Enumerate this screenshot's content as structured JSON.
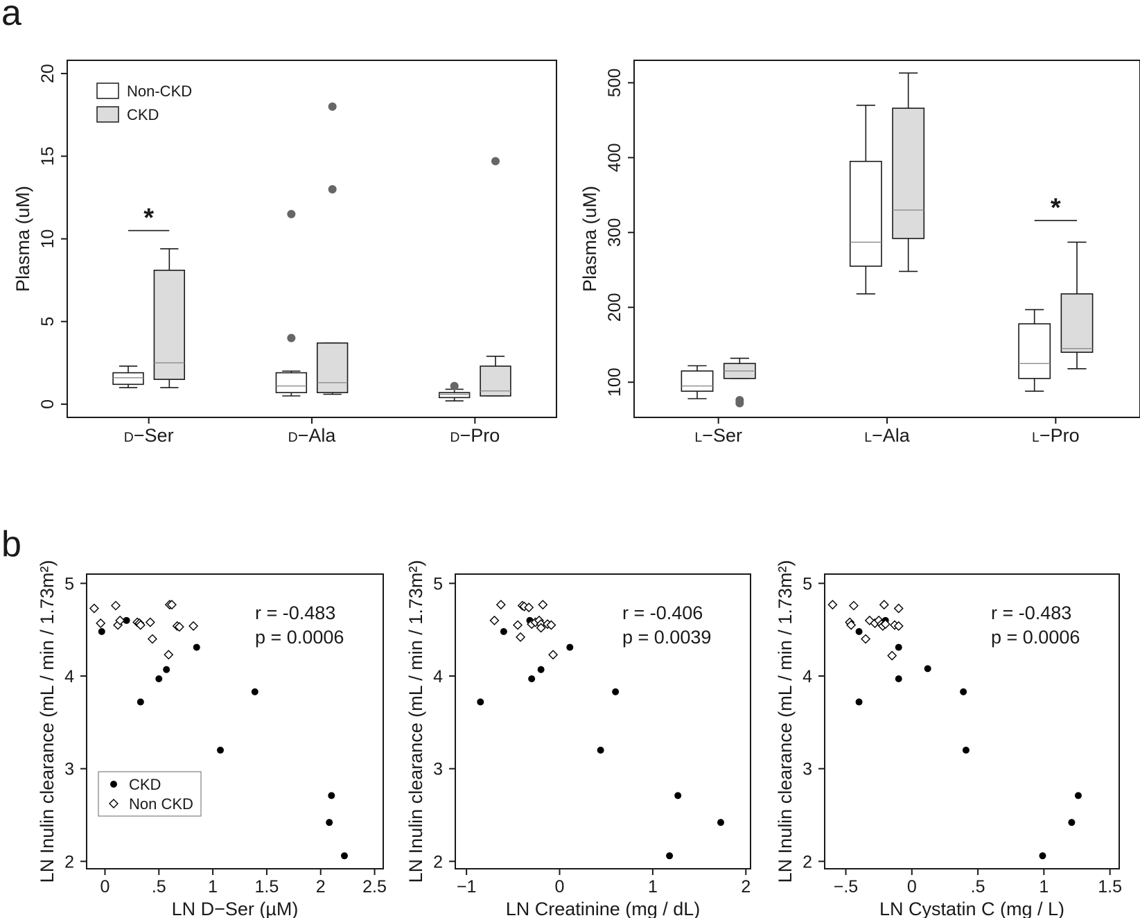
{
  "panels": {
    "a": "a",
    "b": "b"
  },
  "colors": {
    "axis": "#1a1a1a",
    "nonckd_fill": "#ffffff",
    "ckd_fill": "#dcdcdc",
    "median": "#8c8c8c",
    "outlier": "#666666",
    "point": "#000000"
  },
  "chart_data": [
    {
      "id": "d",
      "type": "box",
      "ylabel": "Plasma (uM)",
      "ylim": [
        -0.8,
        20.8
      ],
      "yticks": [
        0,
        5,
        10,
        15,
        20
      ],
      "groups": [
        {
          "prefix": "D",
          "name": "−Ser"
        },
        {
          "prefix": "D",
          "name": "−Ala"
        },
        {
          "prefix": "D",
          "name": "−Pro"
        }
      ],
      "legend": {
        "position": "top-left",
        "items": [
          {
            "label": "Non-CKD",
            "fill": "nonckd"
          },
          {
            "label": "CKD",
            "fill": "ckd"
          }
        ]
      },
      "boxes": [
        {
          "group": 0,
          "series": "nonckd",
          "whisker_low": 1.0,
          "q1": 1.2,
          "median": 1.6,
          "q3": 1.9,
          "whisker_high": 2.3,
          "outliers": []
        },
        {
          "group": 0,
          "series": "ckd",
          "whisker_low": 1.0,
          "q1": 1.5,
          "median": 2.5,
          "q3": 8.1,
          "whisker_high": 9.4,
          "outliers": []
        },
        {
          "group": 1,
          "series": "nonckd",
          "whisker_low": 0.5,
          "q1": 0.7,
          "median": 1.1,
          "q3": 1.9,
          "whisker_high": 2.0,
          "outliers": [
            4.0,
            11.5
          ]
        },
        {
          "group": 1,
          "series": "ckd",
          "whisker_low": 0.6,
          "q1": 0.7,
          "median": 1.3,
          "q3": 3.7,
          "whisker_high": 3.7,
          "outliers": [
            13.0,
            18.0
          ]
        },
        {
          "group": 2,
          "series": "nonckd",
          "whisker_low": 0.2,
          "q1": 0.4,
          "median": 0.6,
          "q3": 0.7,
          "whisker_high": 0.9,
          "outliers": [
            1.1
          ]
        },
        {
          "group": 2,
          "series": "ckd",
          "whisker_low": 0.5,
          "q1": 0.5,
          "median": 0.8,
          "q3": 2.3,
          "whisker_high": 2.9,
          "outliers": [
            14.7
          ]
        }
      ],
      "significance": [
        {
          "group": 0,
          "y": 10.5,
          "label": "*"
        }
      ]
    },
    {
      "id": "l",
      "type": "box",
      "ylabel": "Plasma (uM)",
      "ylim": [
        53,
        530
      ],
      "yticks": [
        100,
        200,
        300,
        400,
        500
      ],
      "groups": [
        {
          "prefix": "L",
          "name": "−Ser"
        },
        {
          "prefix": "L",
          "name": "−Ala"
        },
        {
          "prefix": "L",
          "name": "−Pro"
        }
      ],
      "boxes": [
        {
          "group": 0,
          "series": "nonckd",
          "whisker_low": 78,
          "q1": 88,
          "median": 95,
          "q3": 115,
          "whisker_high": 122,
          "outliers": []
        },
        {
          "group": 0,
          "series": "ckd",
          "whisker_low": 105,
          "q1": 105,
          "median": 115,
          "q3": 125,
          "whisker_high": 132,
          "outliers": [
            72,
            76
          ]
        },
        {
          "group": 1,
          "series": "nonckd",
          "whisker_low": 218,
          "q1": 255,
          "median": 287,
          "q3": 395,
          "whisker_high": 470,
          "outliers": []
        },
        {
          "group": 1,
          "series": "ckd",
          "whisker_low": 248,
          "q1": 292,
          "median": 330,
          "q3": 466,
          "whisker_high": 513,
          "outliers": []
        },
        {
          "group": 2,
          "series": "nonckd",
          "whisker_low": 88,
          "q1": 105,
          "median": 125,
          "q3": 178,
          "whisker_high": 197,
          "outliers": []
        },
        {
          "group": 2,
          "series": "ckd",
          "whisker_low": 118,
          "q1": 140,
          "median": 145,
          "q3": 218,
          "whisker_high": 287,
          "outliers": []
        }
      ],
      "significance": [
        {
          "group": 2,
          "y": 316,
          "label": "*"
        }
      ]
    },
    {
      "id": "dser",
      "type": "scatter",
      "xlabel": "LN D−Ser (µM)",
      "ylabel": "LN Inulin clearance (mL / min / 1.73m²)",
      "xlim": [
        -0.17,
        2.58
      ],
      "ylim": [
        1.92,
        5.1
      ],
      "xticks": [
        0,
        0.5,
        1,
        1.5,
        2,
        2.5
      ],
      "xtick_labels": [
        "0",
        ".5",
        "1",
        "1.5",
        "2",
        "2.5"
      ],
      "yticks": [
        2,
        3,
        4,
        5
      ],
      "stats": {
        "r": "r = -0.483",
        "p": "p = 0.0006"
      },
      "legend": {
        "position": "bottom-left",
        "items": [
          {
            "label": "CKD",
            "marker": "dot"
          },
          {
            "label": "Non CKD",
            "marker": "diamond"
          }
        ]
      },
      "series": [
        {
          "name": "CKD",
          "marker": "dot",
          "points": [
            [
              -0.03,
              4.48
            ],
            [
              0.2,
              4.6
            ],
            [
              0.33,
              3.72
            ],
            [
              0.5,
              3.97
            ],
            [
              0.57,
              4.07
            ],
            [
              0.85,
              4.31
            ],
            [
              1.39,
              3.83
            ],
            [
              1.07,
              3.2
            ],
            [
              2.1,
              2.71
            ],
            [
              2.08,
              2.42
            ],
            [
              2.22,
              2.06
            ]
          ]
        },
        {
          "name": "Non CKD",
          "marker": "diamond",
          "points": [
            [
              -0.1,
              4.73
            ],
            [
              -0.04,
              4.57
            ],
            [
              0.1,
              4.76
            ],
            [
              0.12,
              4.55
            ],
            [
              0.14,
              4.6
            ],
            [
              0.3,
              4.58
            ],
            [
              0.32,
              4.57
            ],
            [
              0.33,
              4.55
            ],
            [
              0.42,
              4.58
            ],
            [
              0.44,
              4.4
            ],
            [
              0.6,
              4.77
            ],
            [
              0.62,
              4.77
            ],
            [
              0.67,
              4.54
            ],
            [
              0.69,
              4.53
            ],
            [
              0.82,
              4.54
            ],
            [
              0.59,
              4.23
            ]
          ]
        }
      ]
    },
    {
      "id": "creat",
      "type": "scatter",
      "xlabel": "LN Creatinine (mg / dL)",
      "ylabel": "LN Inulin clearance (mL / min / 1.73m²)",
      "xlim": [
        -1.12,
        2.05
      ],
      "ylim": [
        1.92,
        5.1
      ],
      "xticks": [
        -1,
        0,
        1,
        2
      ],
      "xtick_labels": [
        "−1",
        "0",
        "1",
        "2"
      ],
      "yticks": [
        2,
        3,
        4,
        5
      ],
      "stats": {
        "r": "r = -0.406",
        "p": "p = 0.0039"
      },
      "series": [
        {
          "name": "CKD",
          "marker": "dot",
          "points": [
            [
              -0.85,
              3.72
            ],
            [
              -0.6,
              4.48
            ],
            [
              -0.3,
              3.97
            ],
            [
              -0.32,
              4.6
            ],
            [
              -0.2,
              4.07
            ],
            [
              0.11,
              4.31
            ],
            [
              0.6,
              3.83
            ],
            [
              0.44,
              3.2
            ],
            [
              1.27,
              2.71
            ],
            [
              1.73,
              2.42
            ],
            [
              1.18,
              2.06
            ]
          ]
        },
        {
          "name": "Non CKD",
          "marker": "diamond",
          "points": [
            [
              -0.7,
              4.6
            ],
            [
              -0.63,
              4.77
            ],
            [
              -0.4,
              4.76
            ],
            [
              -0.38,
              4.75
            ],
            [
              -0.33,
              4.74
            ],
            [
              -0.45,
              4.55
            ],
            [
              -0.42,
              4.42
            ],
            [
              -0.3,
              4.56
            ],
            [
              -0.26,
              4.58
            ],
            [
              -0.22,
              4.6
            ],
            [
              -0.2,
              4.56
            ],
            [
              -0.18,
              4.77
            ],
            [
              -0.13,
              4.56
            ],
            [
              -0.09,
              4.55
            ],
            [
              -0.2,
              4.52
            ],
            [
              -0.07,
              4.23
            ]
          ]
        }
      ]
    },
    {
      "id": "cys",
      "type": "scatter",
      "xlabel": "LN Cystatin C (mg / L)",
      "ylabel": "LN Inulin clearance (mL / min / 1.73m²)",
      "xlim": [
        -0.66,
        1.57
      ],
      "ylim": [
        1.92,
        5.1
      ],
      "xticks": [
        -0.5,
        0,
        0.5,
        1,
        1.5
      ],
      "xtick_labels": [
        "−.5",
        "0",
        ".5",
        "1",
        "1.5"
      ],
      "yticks": [
        2,
        3,
        4,
        5
      ],
      "stats": {
        "r": "r = -0.483",
        "p": "p = 0.0006"
      },
      "series": [
        {
          "name": "CKD",
          "marker": "dot",
          "points": [
            [
              -0.4,
              3.72
            ],
            [
              -0.4,
              4.48
            ],
            [
              -0.2,
              4.6
            ],
            [
              -0.1,
              4.31
            ],
            [
              -0.1,
              3.97
            ],
            [
              0.12,
              4.08
            ],
            [
              0.39,
              3.83
            ],
            [
              0.41,
              3.2
            ],
            [
              1.26,
              2.71
            ],
            [
              1.21,
              2.42
            ],
            [
              0.99,
              2.06
            ]
          ]
        },
        {
          "name": "Non CKD",
          "marker": "diamond",
          "points": [
            [
              -0.6,
              4.77
            ],
            [
              -0.47,
              4.58
            ],
            [
              -0.46,
              4.55
            ],
            [
              -0.44,
              4.76
            ],
            [
              -0.35,
              4.4
            ],
            [
              -0.32,
              4.6
            ],
            [
              -0.28,
              4.57
            ],
            [
              -0.25,
              4.6
            ],
            [
              -0.23,
              4.56
            ],
            [
              -0.22,
              4.54
            ],
            [
              -0.2,
              4.56
            ],
            [
              -0.21,
              4.77
            ],
            [
              -0.15,
              4.22
            ],
            [
              -0.13,
              4.55
            ],
            [
              -0.1,
              4.54
            ],
            [
              -0.1,
              4.73
            ]
          ]
        }
      ]
    }
  ]
}
